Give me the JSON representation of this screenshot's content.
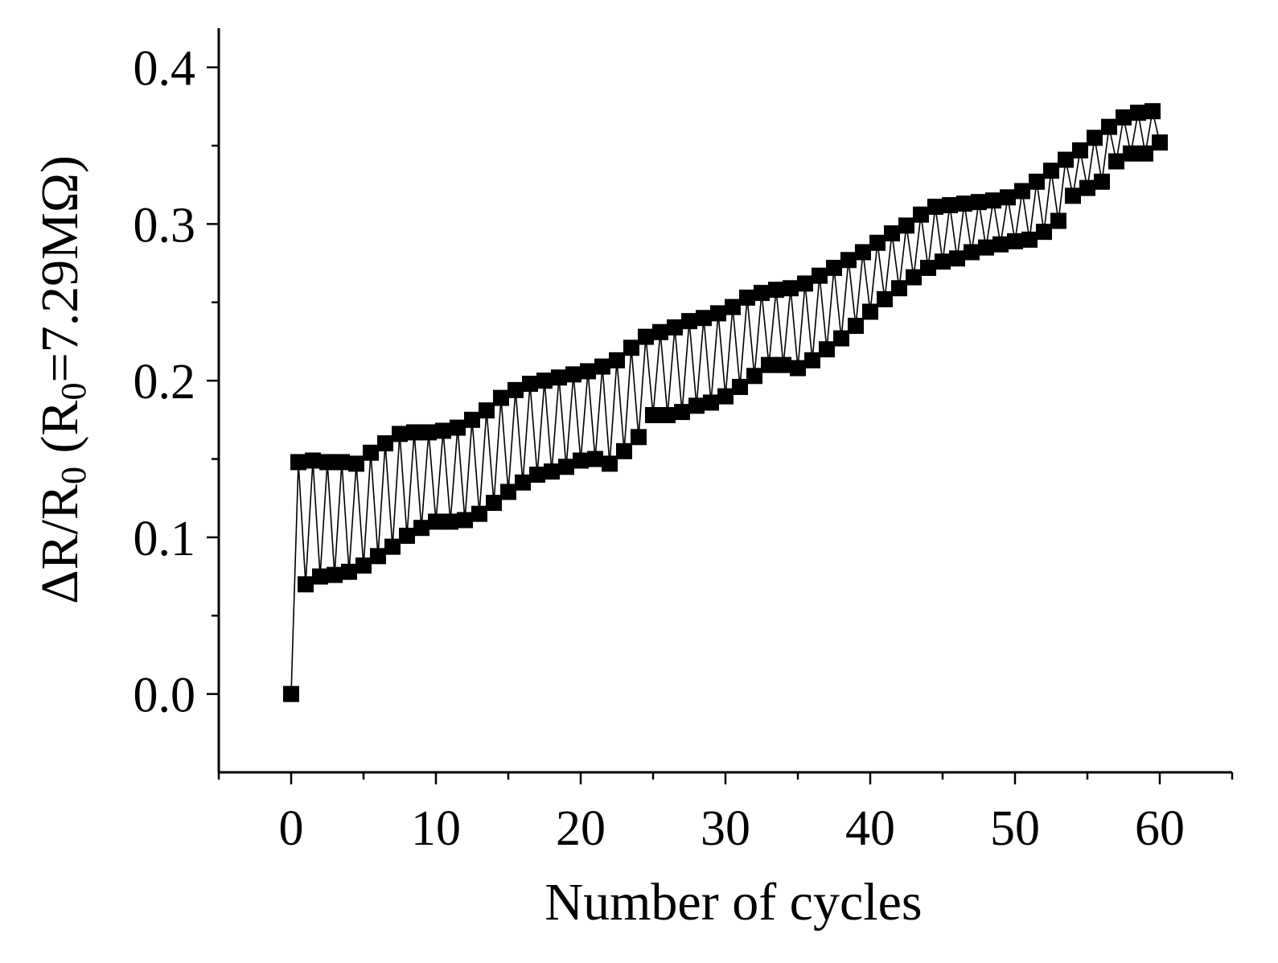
{
  "chart_data": {
    "type": "scatter",
    "title": "",
    "xlabel": "Number of cycles",
    "ylabel": {
      "parts": [
        {
          "text": "ΔR/R",
          "sub": false
        },
        {
          "text": "0",
          "sub": true
        },
        {
          "text": " (R",
          "sub": false
        },
        {
          "text": "0",
          "sub": true
        },
        {
          "text": "=7.29MΩ)",
          "sub": false
        }
      ]
    },
    "xlim": [
      -5,
      65
    ],
    "ylim": [
      -0.05,
      0.425
    ],
    "x_ticks": [
      {
        "value": 0,
        "label": "0"
      },
      {
        "value": 10,
        "label": "10"
      },
      {
        "value": 20,
        "label": "20"
      },
      {
        "value": 30,
        "label": "30"
      },
      {
        "value": 40,
        "label": "40"
      },
      {
        "value": 50,
        "label": "50"
      },
      {
        "value": 60,
        "label": "60"
      }
    ],
    "y_ticks": [
      {
        "value": 0.0,
        "label": "0.0"
      },
      {
        "value": 0.1,
        "label": "0.1"
      },
      {
        "value": 0.2,
        "label": "0.2"
      },
      {
        "value": 0.3,
        "label": "0.3"
      },
      {
        "value": 0.4,
        "label": "0.4"
      }
    ],
    "x_minor_step": 5,
    "y_minor_step": 0.05,
    "grid": false,
    "legend": "none",
    "series": [
      {
        "role": "peaks",
        "marker": "square",
        "color": "#000000",
        "points": [
          [
            0.5,
            0.148
          ],
          [
            1.5,
            0.149
          ],
          [
            2.5,
            0.148
          ],
          [
            3.5,
            0.148
          ],
          [
            4.5,
            0.147
          ],
          [
            5.5,
            0.154
          ],
          [
            6.5,
            0.16
          ],
          [
            7.5,
            0.166
          ],
          [
            8.5,
            0.167
          ],
          [
            9.5,
            0.167
          ],
          [
            10.5,
            0.168
          ],
          [
            11.5,
            0.17
          ],
          [
            12.5,
            0.175
          ],
          [
            13.5,
            0.181
          ],
          [
            14.5,
            0.189
          ],
          [
            15.5,
            0.194
          ],
          [
            16.5,
            0.198
          ],
          [
            17.5,
            0.2
          ],
          [
            18.5,
            0.202
          ],
          [
            19.5,
            0.204
          ],
          [
            20.5,
            0.206
          ],
          [
            21.5,
            0.209
          ],
          [
            22.5,
            0.213
          ],
          [
            23.5,
            0.221
          ],
          [
            24.5,
            0.228
          ],
          [
            25.5,
            0.231
          ],
          [
            26.5,
            0.234
          ],
          [
            27.5,
            0.238
          ],
          [
            28.5,
            0.24
          ],
          [
            29.5,
            0.243
          ],
          [
            30.5,
            0.247
          ],
          [
            31.5,
            0.253
          ],
          [
            32.5,
            0.256
          ],
          [
            33.5,
            0.258
          ],
          [
            34.5,
            0.259
          ],
          [
            35.5,
            0.262
          ],
          [
            36.5,
            0.267
          ],
          [
            37.5,
            0.272
          ],
          [
            38.5,
            0.277
          ],
          [
            39.5,
            0.282
          ],
          [
            40.5,
            0.288
          ],
          [
            41.5,
            0.294
          ],
          [
            42.5,
            0.299
          ],
          [
            43.5,
            0.306
          ],
          [
            44.5,
            0.311
          ],
          [
            45.5,
            0.312
          ],
          [
            46.5,
            0.313
          ],
          [
            47.5,
            0.314
          ],
          [
            48.5,
            0.315
          ],
          [
            49.5,
            0.317
          ],
          [
            50.5,
            0.321
          ],
          [
            51.5,
            0.327
          ],
          [
            52.5,
            0.334
          ],
          [
            53.5,
            0.341
          ],
          [
            54.5,
            0.347
          ],
          [
            55.5,
            0.355
          ],
          [
            56.5,
            0.362
          ],
          [
            57.5,
            0.368
          ],
          [
            58.5,
            0.371
          ],
          [
            59.5,
            0.372
          ]
        ]
      },
      {
        "role": "valleys",
        "marker": "square",
        "color": "#000000",
        "points": [
          [
            0.0,
            0.0
          ],
          [
            1.0,
            0.07
          ],
          [
            2.0,
            0.075
          ],
          [
            3.0,
            0.076
          ],
          [
            4.0,
            0.078
          ],
          [
            5.0,
            0.082
          ],
          [
            6.0,
            0.088
          ],
          [
            7.0,
            0.094
          ],
          [
            8.0,
            0.101
          ],
          [
            9.0,
            0.106
          ],
          [
            10.0,
            0.11
          ],
          [
            11.0,
            0.11
          ],
          [
            12.0,
            0.111
          ],
          [
            13.0,
            0.115
          ],
          [
            14.0,
            0.122
          ],
          [
            15.0,
            0.129
          ],
          [
            16.0,
            0.135
          ],
          [
            17.0,
            0.14
          ],
          [
            18.0,
            0.142
          ],
          [
            19.0,
            0.145
          ],
          [
            20.0,
            0.149
          ],
          [
            21.0,
            0.15
          ],
          [
            22.0,
            0.147
          ],
          [
            23.0,
            0.155
          ],
          [
            24.0,
            0.164
          ],
          [
            25.0,
            0.178
          ],
          [
            26.0,
            0.178
          ],
          [
            27.0,
            0.18
          ],
          [
            28.0,
            0.184
          ],
          [
            29.0,
            0.186
          ],
          [
            30.0,
            0.19
          ],
          [
            31.0,
            0.196
          ],
          [
            32.0,
            0.203
          ],
          [
            33.0,
            0.21
          ],
          [
            34.0,
            0.21
          ],
          [
            35.0,
            0.208
          ],
          [
            36.0,
            0.213
          ],
          [
            37.0,
            0.22
          ],
          [
            38.0,
            0.227
          ],
          [
            39.0,
            0.235
          ],
          [
            40.0,
            0.244
          ],
          [
            41.0,
            0.252
          ],
          [
            42.0,
            0.259
          ],
          [
            43.0,
            0.266
          ],
          [
            44.0,
            0.272
          ],
          [
            45.0,
            0.276
          ],
          [
            46.0,
            0.278
          ],
          [
            47.0,
            0.282
          ],
          [
            48.0,
            0.285
          ],
          [
            49.0,
            0.287
          ],
          [
            50.0,
            0.289
          ],
          [
            51.0,
            0.29
          ],
          [
            52.0,
            0.295
          ],
          [
            53.0,
            0.302
          ],
          [
            54.0,
            0.318
          ],
          [
            55.0,
            0.323
          ],
          [
            56.0,
            0.327
          ],
          [
            57.0,
            0.34
          ],
          [
            58.0,
            0.345
          ],
          [
            59.0,
            0.345
          ],
          [
            60.0,
            0.352
          ]
        ]
      }
    ]
  }
}
